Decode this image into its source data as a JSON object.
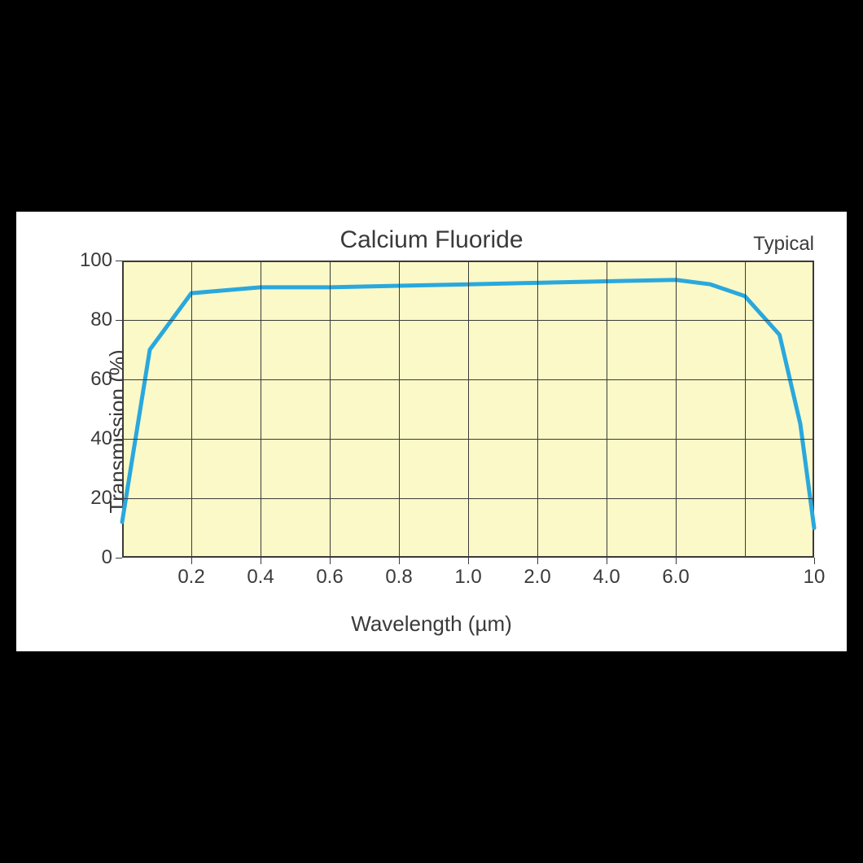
{
  "chart": {
    "type": "line",
    "title": "Calcium Fluoride",
    "subtitle": "Typical",
    "xlabel": "Wavelength (µm)",
    "ylabel": "Transmission (%)",
    "background_color": "#fbf9c8",
    "panel_color": "#ffffff",
    "page_color": "#000000",
    "grid_color": "#3a3a3a",
    "text_color": "#3a3a3a",
    "line_color": "#2aa8dd",
    "line_width": 5,
    "title_fontsize": 30,
    "subtitle_fontsize": 24,
    "label_fontsize": 26,
    "tick_fontsize": 24,
    "ylim": [
      0,
      100
    ],
    "ytick_step": 20,
    "yticks": [
      0,
      20,
      40,
      60,
      80,
      100
    ],
    "xtick_labels": [
      "0.2",
      "0.4",
      "0.6",
      "0.8",
      "1.0",
      "2.0",
      "4.0",
      "6.0",
      "10"
    ],
    "xtick_positions_pct": [
      10,
      20,
      30,
      40,
      50,
      60,
      70,
      80,
      100
    ],
    "x_grid_positions_pct": [
      0,
      10,
      20,
      30,
      40,
      50,
      60,
      70,
      80,
      90,
      100
    ],
    "series": {
      "x_pct": [
        0,
        4,
        10,
        20,
        30,
        40,
        50,
        60,
        70,
        80,
        85,
        90,
        95,
        98,
        100
      ],
      "y_val": [
        12,
        70,
        89,
        91,
        91,
        91.5,
        92,
        92.5,
        93,
        93.5,
        92,
        88,
        75,
        45,
        10
      ]
    }
  }
}
